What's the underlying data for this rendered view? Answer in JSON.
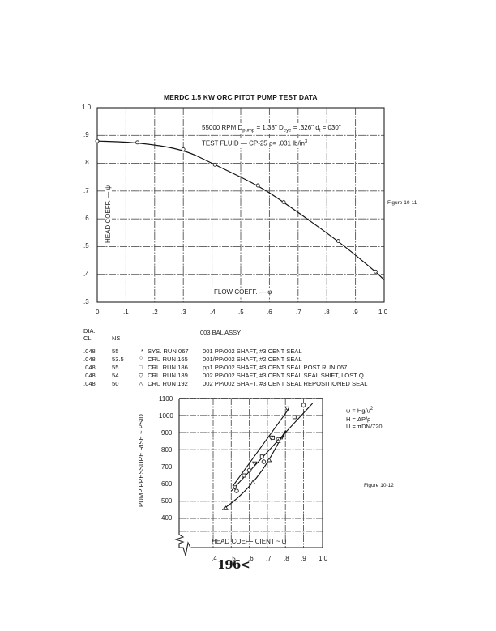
{
  "chart_data": [
    {
      "type": "line",
      "figure_label": "Figure 10-11",
      "title": "MERDC 1.5 KW ORC PITOT PUMP TEST DATA",
      "annotations": [
        "55000 RPM D_pump = 1.38\"  D_eye = .326\"  d_t = 030\"",
        "TEST FLUID — CP-25 ρ= .031 lb/in³"
      ],
      "xlabel": "FLOW COEFF. — φ",
      "ylabel": "HEAD COEFF. — ψ",
      "xlim": [
        0,
        1.0
      ],
      "ylim": [
        0.3,
        1.0
      ],
      "grid": true,
      "x_ticks": [
        "0",
        ".1",
        ".2",
        ".3",
        ".4",
        ".5",
        ".6",
        ".7",
        ".8",
        ".9",
        "1.0"
      ],
      "y_ticks": [
        "1.0",
        ".9",
        ".8",
        ".7",
        ".6",
        ".5",
        ".4",
        ".3"
      ],
      "series": [
        {
          "name": "Head coefficient vs flow coefficient",
          "x": [
            0.0,
            0.14,
            0.3,
            0.41,
            0.56,
            0.65,
            0.84,
            0.97
          ],
          "y": [
            0.88,
            0.875,
            0.85,
            0.795,
            0.72,
            0.66,
            0.52,
            0.41
          ]
        }
      ],
      "curve_end": {
        "x": 1.0,
        "y": 0.38
      }
    },
    {
      "type": "line",
      "figure_label": "Figure 10-12",
      "title": "",
      "xlabel": "HEAD COEFFICIENT ~ ψ",
      "ylabel": "PUMP PRESSURE RISE ~ PSID",
      "xlim": [
        0.4,
        1.0
      ],
      "ylim": [
        400,
        1100
      ],
      "grid": true,
      "x_ticks": [
        ".4",
        ".5",
        ".6",
        ".7",
        ".8",
        ".9",
        "1.0"
      ],
      "y_ticks": [
        "1100",
        "1000",
        "900",
        "800",
        "700",
        "600",
        "500",
        "400"
      ],
      "formulas": [
        "ψ = Hg/u²",
        "H = ΔP/ρ",
        "U = πDN/720"
      ],
      "series": [
        {
          "name": "CRU RUN 165 (circle)",
          "marker": "circle",
          "x": [
            0.53,
            0.6,
            0.68,
            0.76,
            0.9
          ],
          "y": [
            560,
            680,
            730,
            860,
            1060
          ]
        },
        {
          "name": "CRU RUN 186 (square)",
          "marker": "square",
          "x": [
            0.57,
            0.67,
            0.73,
            0.85
          ],
          "y": [
            650,
            760,
            870,
            990
          ]
        },
        {
          "name": "CRU RUN 189 (down-triangle)",
          "marker": "triangle-down",
          "x": [
            0.52,
            0.63,
            0.72,
            0.81
          ],
          "y": [
            580,
            720,
            870,
            1040
          ]
        },
        {
          "name": "CRU RUN 192 (triangle)",
          "marker": "triangle",
          "x": [
            0.47,
            0.62,
            0.71,
            0.76
          ],
          "y": [
            460,
            610,
            740,
            850
          ]
        }
      ]
    }
  ],
  "page": {
    "title": "MERDC 1.5 KW ORC PITOT PUMP TEST DATA",
    "annotation1_prefix": "55000 RPM D",
    "annotation1_sub1": "pump",
    "annotation1_mid": " = 1.38\"  D",
    "annotation1_sub2": "eye",
    "annotation1_mid2": " = .326\"  d",
    "annotation1_sub3": "t",
    "annotation1_end": " = 030\"",
    "annotation2": "TEST FLUID — CP-25 ρ= .031 lb/in",
    "annotation2_sup": "3",
    "ylabel1": "HEAD COEFF. — ψ",
    "xlabel1": "FLOW COEFF. — φ",
    "figure1": "Figure 10-11",
    "figure2": "Figure 10-12",
    "ylabel2": "PUMP PRESSURE RISE ~ PSID",
    "xlabel2": "HEAD COEFFICIENT ~ ψ",
    "page_number": "196<",
    "x1_ticks": [
      "0",
      ".1",
      ".2",
      ".3",
      ".4",
      ".5",
      ".6",
      ".7",
      ".8",
      ".9",
      "1.0"
    ],
    "y1_ticks": [
      "1.0",
      ".9",
      ".8",
      ".7",
      ".6",
      ".5",
      ".4",
      ".3"
    ],
    "x2_ticks": [
      ".4",
      ".5",
      ".6",
      ".7",
      ".8",
      ".9",
      "1.0"
    ],
    "y2_ticks": [
      "1100",
      "1000",
      "900",
      "800",
      "700",
      "600",
      "500",
      "400"
    ],
    "formulas": {
      "f1": "ψ = Hg/u",
      "f1_sup": "2",
      "f2": "H = ΔP/ρ",
      "f3": "U = πDN/720"
    }
  },
  "legend": {
    "header_dia": "DIA.",
    "header_cl": "CL.",
    "header_ns": "NS",
    "header_assy": "003 BAL ASSY",
    "rows": [
      {
        "dia": ".048",
        "ns": "55",
        "symbol": "*",
        "run": "SYS. RUN 067",
        "desc": "001 PP/002 SHAFT, #3 CENT SEAL"
      },
      {
        "dia": ".048",
        "ns": "53.5",
        "symbol": "○",
        "run": "CRU RUN 165",
        "desc": "001/PP/002 SHAFT, #2 CENT SEAL"
      },
      {
        "dia": ".048",
        "ns": "55",
        "symbol": "□",
        "run": "CRU RUN 186",
        "desc": "pp1 PP/002 SHAFT, #3 CENT SEAL POST RUN 067"
      },
      {
        "dia": ".048",
        "ns": "54",
        "symbol": "▽",
        "run": "CRU RUN 189",
        "desc": "002 PP/002 SHAFT, #3 CENT SEAL SEAL SHIFT, LOST Q"
      },
      {
        "dia": ".048",
        "ns": "50",
        "symbol": "△",
        "run": "CRU RUN 192",
        "desc": "002 PP/002 SHAFT, #3 CENT SEAL REPOSITIONED SEAL"
      }
    ]
  }
}
